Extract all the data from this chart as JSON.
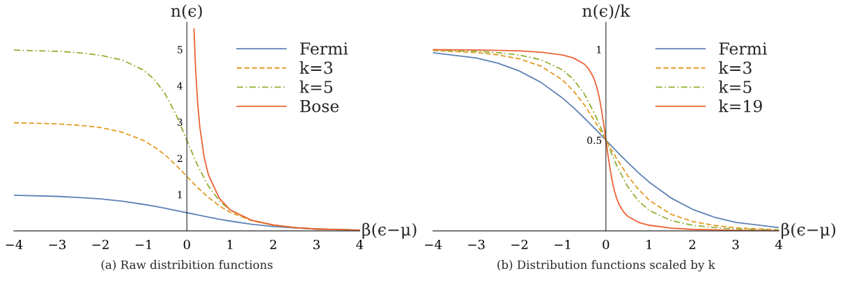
{
  "chart_data": [
    {
      "type": "line",
      "xlabel": "β(ϵ−μ)",
      "ylabel": "n(ϵ)",
      "annotations": [
        "(a) Raw distribition functions"
      ],
      "xlim": [
        -4,
        4
      ],
      "ylim": [
        0,
        5.75
      ],
      "xticks": [
        {
          "value": -4,
          "label": "−4"
        },
        {
          "value": -3,
          "label": "−3"
        },
        {
          "value": -2,
          "label": "−2"
        },
        {
          "value": -1,
          "label": "−1"
        },
        0,
        1,
        2,
        3,
        4
      ],
      "yticks": [
        1,
        2,
        3,
        4,
        5
      ],
      "legend": "top right",
      "series": [
        {
          "name": "Fermi",
          "color": "#5e81b5",
          "line_style": "solid",
          "x": [
            -4,
            -3,
            -2.5,
            -2,
            -1.5,
            -1,
            -0.75,
            -0.5,
            -0.25,
            0,
            0.25,
            0.5,
            0.75,
            1,
            1.5,
            2,
            2.5,
            3,
            4
          ],
          "values": [
            0.98,
            0.95,
            0.92,
            0.88,
            0.82,
            0.73,
            0.68,
            0.62,
            0.56,
            0.5,
            0.44,
            0.38,
            0.32,
            0.27,
            0.18,
            0.12,
            0.08,
            0.05,
            0.02
          ]
        },
        {
          "name": "k=3",
          "color": "#e19c24",
          "line_style": "dashed",
          "x": [
            -4,
            -3,
            -2.5,
            -2,
            -1.5,
            -1,
            -0.75,
            -0.5,
            -0.25,
            0,
            0.25,
            0.5,
            0.75,
            1,
            1.5,
            2,
            2.5,
            3,
            4
          ],
          "values": [
            2.98,
            2.95,
            2.91,
            2.85,
            2.72,
            2.49,
            2.31,
            2.09,
            1.81,
            1.5,
            1.19,
            0.92,
            0.69,
            0.51,
            0.28,
            0.16,
            0.09,
            0.05,
            0.02
          ]
        },
        {
          "name": "k=5",
          "color": "#8fb032",
          "line_style": "dashdot",
          "x": [
            -4,
            -3,
            -2.5,
            -2,
            -1.5,
            -1,
            -0.75,
            -0.5,
            -0.25,
            0,
            0.25,
            0.5,
            0.75,
            1,
            1.5,
            2,
            2.5,
            3,
            4
          ],
          "values": [
            4.98,
            4.95,
            4.91,
            4.84,
            4.71,
            4.43,
            4.17,
            3.77,
            3.2,
            2.5,
            1.8,
            1.23,
            0.83,
            0.57,
            0.29,
            0.16,
            0.09,
            0.05,
            0.02
          ]
        },
        {
          "name": "Bose",
          "color": "#eb6235",
          "line_style": "solid",
          "x": [
            0.165,
            0.2,
            0.25,
            0.3,
            0.4,
            0.5,
            0.75,
            1,
            1.5,
            2,
            2.5,
            3,
            4
          ],
          "values": [
            5.57,
            4.52,
            3.52,
            2.86,
            2.03,
            1.54,
            0.9,
            0.58,
            0.29,
            0.16,
            0.09,
            0.05,
            0.02
          ]
        }
      ]
    },
    {
      "type": "line",
      "xlabel": "β(ϵ−μ)",
      "ylabel": "n(ϵ)/k",
      "annotations": [
        "(b) Distribution functions scaled by k"
      ],
      "xlim": [
        -4,
        4
      ],
      "ylim": [
        0,
        1.15
      ],
      "xticks": [
        {
          "value": -4,
          "label": "−4"
        },
        {
          "value": -3,
          "label": "−3"
        },
        {
          "value": -2,
          "label": "−2"
        },
        {
          "value": -1,
          "label": "−1"
        },
        0,
        1,
        2,
        3,
        4
      ],
      "yticks": [
        0.5,
        1
      ],
      "legend": "top right",
      "series": [
        {
          "name": "Fermi",
          "color": "#5e81b5",
          "line_style": "solid",
          "x": [
            -4,
            -3,
            -2.5,
            -2,
            -1.5,
            -1,
            -0.75,
            -0.5,
            -0.25,
            0,
            0.25,
            0.5,
            0.75,
            1,
            1.5,
            2,
            2.5,
            3,
            4
          ],
          "values": [
            0.982,
            0.953,
            0.924,
            0.881,
            0.818,
            0.731,
            0.679,
            0.622,
            0.562,
            0.5,
            0.438,
            0.378,
            0.321,
            0.269,
            0.182,
            0.119,
            0.076,
            0.047,
            0.018
          ]
        },
        {
          "name": "k=3",
          "color": "#e19c24",
          "line_style": "dashed",
          "x": [
            -4,
            -3,
            -2.5,
            -2,
            -1.5,
            -1,
            -0.75,
            -0.5,
            -0.25,
            -0.1,
            0,
            0.1,
            0.25,
            0.5,
            0.75,
            1,
            1.5,
            2,
            2.5,
            3,
            4
          ],
          "values": [
            0.994,
            0.983,
            0.97,
            0.948,
            0.908,
            0.831,
            0.771,
            0.695,
            0.602,
            0.542,
            0.5,
            0.458,
            0.398,
            0.305,
            0.229,
            0.169,
            0.092,
            0.052,
            0.03,
            0.017,
            0.006
          ]
        },
        {
          "name": "k=5",
          "color": "#8fb032",
          "line_style": "dashdot",
          "x": [
            -4,
            -3,
            -2.5,
            -2,
            -1.5,
            -1,
            -0.75,
            -0.5,
            -0.25,
            -0.1,
            0,
            0.1,
            0.25,
            0.5,
            0.75,
            1,
            1.5,
            2,
            2.5,
            3,
            4
          ],
          "values": [
            0.996,
            0.99,
            0.982,
            0.969,
            0.943,
            0.887,
            0.834,
            0.755,
            0.64,
            0.558,
            0.5,
            0.442,
            0.36,
            0.245,
            0.166,
            0.113,
            0.057,
            0.031,
            0.018,
            0.01,
            0.004
          ]
        },
        {
          "name": "k=19",
          "color": "#eb6235",
          "line_style": "solid",
          "x": [
            -4,
            -3,
            -2,
            -1.5,
            -1,
            -0.75,
            -0.5,
            -0.4,
            -0.3,
            -0.25,
            -0.2,
            -0.15,
            -0.1,
            -0.05,
            0,
            0.05,
            0.1,
            0.15,
            0.2,
            0.25,
            0.3,
            0.4,
            0.5,
            0.75,
            1,
            1.5,
            2,
            3,
            4
          ],
          "values": [
            0.999,
            0.997,
            0.992,
            0.985,
            0.969,
            0.953,
            0.919,
            0.893,
            0.852,
            0.822,
            0.782,
            0.73,
            0.664,
            0.586,
            0.5,
            0.414,
            0.336,
            0.27,
            0.218,
            0.178,
            0.148,
            0.107,
            0.081,
            0.047,
            0.031,
            0.015,
            0.008,
            0.003,
            0.001
          ]
        }
      ]
    }
  ]
}
